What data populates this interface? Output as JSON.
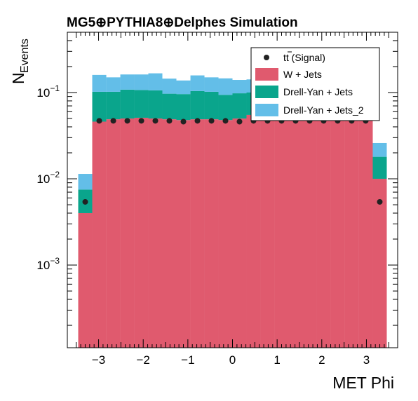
{
  "chart_data": {
    "type": "bar",
    "title": "MG5⊕PYTHIA8⊕Delphes Simulation",
    "xlabel": "MET Phi",
    "ylabel": "N",
    "ylabel_sub": "Events",
    "yscale": "log",
    "xlim": [
      -3.7,
      3.7
    ],
    "ylim": [
      0.00011,
      0.5
    ],
    "x_ticks": [
      -3,
      -2,
      -1,
      0,
      1,
      2,
      3
    ],
    "x_tick_labels": [
      "−3",
      "−2",
      "−1",
      "0",
      "1",
      "2",
      "3"
    ],
    "y_ticks": [
      0.001,
      0.01,
      0.1
    ],
    "y_tick_bases": [
      "10",
      "10",
      "10"
    ],
    "y_tick_exps": [
      "−3",
      "−2",
      "−1"
    ],
    "bin_edges": [
      -3.456,
      -3.142,
      -2.827,
      -2.513,
      -2.199,
      -1.885,
      -1.571,
      -1.257,
      -0.942,
      -0.628,
      -0.314,
      0.0,
      0.314,
      0.628,
      0.942,
      1.257,
      1.571,
      1.885,
      2.199,
      2.513,
      2.827,
      3.142,
      3.456
    ],
    "stack": [
      {
        "name": "W + Jets",
        "color": "#e05a6e",
        "values": [
          0.004,
          0.046,
          0.049,
          0.05,
          0.051,
          0.05,
          0.049,
          0.048,
          0.049,
          0.049,
          0.048,
          0.05,
          0.055,
          0.055,
          0.055,
          0.056,
          0.055,
          0.055,
          0.055,
          0.054,
          0.052,
          0.01
        ]
      },
      {
        "name": "Drell-Yan + Jets",
        "color": "#0aa58c",
        "values": [
          0.0035,
          0.056,
          0.053,
          0.058,
          0.056,
          0.056,
          0.048,
          0.048,
          0.055,
          0.053,
          0.046,
          0.048,
          0.045,
          0.055,
          0.055,
          0.056,
          0.055,
          0.055,
          0.055,
          0.052,
          0.045,
          0.008
        ]
      },
      {
        "name": "Drell-Yan + Jets_2",
        "color": "#63bee8",
        "values": [
          0.0039,
          0.058,
          0.048,
          0.054,
          0.055,
          0.061,
          0.048,
          0.042,
          0.054,
          0.048,
          0.052,
          0.042,
          0.042,
          0.052,
          0.052,
          0.052,
          0.052,
          0.052,
          0.052,
          0.052,
          0.05,
          0.008
        ]
      }
    ],
    "signal": {
      "name": "tt̄ (Signal)",
      "color": "#222222",
      "values": [
        0.0054,
        0.047,
        0.047,
        0.047,
        0.047,
        0.047,
        0.047,
        0.046,
        0.047,
        0.047,
        0.047,
        0.046,
        0.047,
        0.047,
        0.047,
        0.047,
        0.047,
        0.047,
        0.047,
        0.047,
        0.047,
        0.0054
      ]
    },
    "legend": {
      "placement": "top-right",
      "entries": [
        {
          "label_main": "tt",
          "label_rest": " (Signal)",
          "marker": "dot"
        },
        {
          "label": "W + Jets",
          "marker": "box",
          "color": "#e05a6e"
        },
        {
          "label": "Drell-Yan + Jets",
          "marker": "box",
          "color": "#0aa58c"
        },
        {
          "label": "Drell-Yan + Jets_2",
          "marker": "box",
          "color": "#63bee8"
        }
      ]
    }
  }
}
